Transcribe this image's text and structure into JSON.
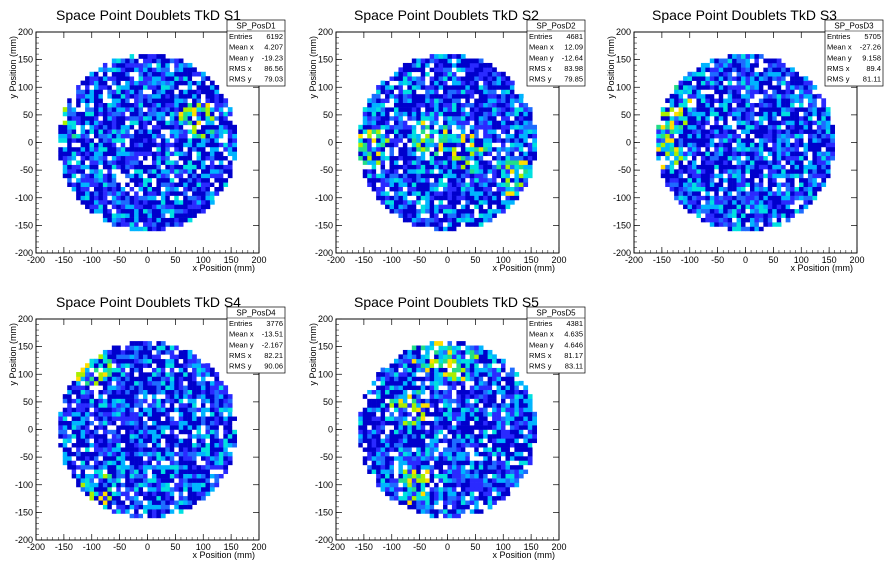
{
  "chart_data": [
    {
      "type": "heatmap",
      "title": "Space Point Doublets TkD S1",
      "xlabel": "x Position (mm)",
      "ylabel": "y Position (mm)",
      "xlim": [
        -200,
        200
      ],
      "ylim": [
        -200,
        200
      ],
      "x_ticks": [
        "-200",
        "-150",
        "-100",
        "-50",
        "0",
        "50",
        "100",
        "150",
        "200"
      ],
      "y_ticks": [
        "-200",
        "-150",
        "-100",
        "-50",
        "0",
        "50",
        "100",
        "150",
        "200"
      ],
      "data_region": "disk, radius ~160 mm centred at (0,0)",
      "hot_spots": [
        [
          90,
          40
        ],
        [
          -160,
          30
        ]
      ],
      "stats": {
        "name": "SP_PosD1",
        "rows": [
          {
            "label": "Entries",
            "value": "6192"
          },
          {
            "label": "Mean x",
            "value": "4.207"
          },
          {
            "label": "Mean y",
            "value": "-19.23"
          },
          {
            "label": "RMS x",
            "value": "86.56"
          },
          {
            "label": "RMS y",
            "value": "79.03"
          }
        ]
      }
    },
    {
      "type": "heatmap",
      "title": "Space Point Doublets TkD S2",
      "xlabel": "x Position (mm)",
      "ylabel": "y Position (mm)",
      "xlim": [
        -200,
        200
      ],
      "ylim": [
        -200,
        200
      ],
      "x_ticks": [
        "-200",
        "-150",
        "-100",
        "-50",
        "0",
        "50",
        "100",
        "150",
        "200"
      ],
      "y_ticks": [
        "-200",
        "-150",
        "-100",
        "-50",
        "0",
        "50",
        "100",
        "150",
        "200"
      ],
      "data_region": "disk, radius ~160 mm centred at (0,0)",
      "hot_spots": [
        [
          -30,
          10
        ],
        [
          40,
          -20
        ],
        [
          120,
          -60
        ],
        [
          -140,
          -10
        ]
      ],
      "stats": {
        "name": "SP_PosD2",
        "rows": [
          {
            "label": "Entries",
            "value": "4681"
          },
          {
            "label": "Mean x",
            "value": "12.09"
          },
          {
            "label": "Mean y",
            "value": "-12.64"
          },
          {
            "label": "RMS x",
            "value": "83.98"
          },
          {
            "label": "RMS y",
            "value": "79.85"
          }
        ]
      }
    },
    {
      "type": "heatmap",
      "title": "Space Point Doublets TkD S3",
      "xlabel": "x Position (mm)",
      "ylabel": "y Position (mm)",
      "xlim": [
        -200,
        200
      ],
      "ylim": [
        -200,
        200
      ],
      "x_ticks": [
        "-200",
        "-150",
        "-100",
        "-50",
        "0",
        "50",
        "100",
        "150",
        "200"
      ],
      "y_ticks": [
        "-200",
        "-150",
        "-100",
        "-50",
        "0",
        "50",
        "100",
        "150",
        "200"
      ],
      "data_region": "disk, radius ~160 mm centred at (0,0)",
      "hot_spots": [
        [
          -140,
          40
        ],
        [
          -150,
          -20
        ],
        [
          -130,
          80
        ]
      ],
      "stats": {
        "name": "SP_PosD3",
        "rows": [
          {
            "label": "Entries",
            "value": "5705"
          },
          {
            "label": "Mean x",
            "value": "-27.26"
          },
          {
            "label": "Mean y",
            "value": "9.158"
          },
          {
            "label": "RMS x",
            "value": "89.4"
          },
          {
            "label": "RMS y",
            "value": "81.11"
          }
        ]
      }
    },
    {
      "type": "heatmap",
      "title": "Space Point Doublets TkD S4",
      "xlabel": "x Position (mm)",
      "ylabel": "y Position (mm)",
      "xlim": [
        -200,
        200
      ],
      "ylim": [
        -200,
        200
      ],
      "x_ticks": [
        "-200",
        "-150",
        "-100",
        "-50",
        "0",
        "50",
        "100",
        "150",
        "200"
      ],
      "y_ticks": [
        "-200",
        "-150",
        "-100",
        "-50",
        "0",
        "50",
        "100",
        "150",
        "200"
      ],
      "data_region": "disk, radius ~160 mm centred at (0,0)",
      "hot_spots": [
        [
          -90,
          -110
        ],
        [
          -100,
          110
        ]
      ],
      "stats": {
        "name": "SP_PosD4",
        "rows": [
          {
            "label": "Entries",
            "value": "3776"
          },
          {
            "label": "Mean x",
            "value": "-13.51"
          },
          {
            "label": "Mean y",
            "value": "-2.167"
          },
          {
            "label": "RMS x",
            "value": "82.21"
          },
          {
            "label": "RMS y",
            "value": "90.06"
          }
        ]
      }
    },
    {
      "type": "heatmap",
      "title": "Space Point Doublets TkD S5",
      "xlabel": "x Position (mm)",
      "ylabel": "y Position (mm)",
      "xlim": [
        -200,
        200
      ],
      "ylim": [
        -200,
        200
      ],
      "x_ticks": [
        "-200",
        "-150",
        "-100",
        "-50",
        "0",
        "50",
        "100",
        "150",
        "200"
      ],
      "y_ticks": [
        "-200",
        "-150",
        "-100",
        "-50",
        "0",
        "50",
        "100",
        "150",
        "200"
      ],
      "data_region": "disk, radius ~160 mm centred at (0,0)",
      "hot_spots": [
        [
          -70,
          40
        ],
        [
          -60,
          -100
        ],
        [
          -30,
          140
        ],
        [
          20,
          120
        ]
      ],
      "stats": {
        "name": "SP_PosD5",
        "rows": [
          {
            "label": "Entries",
            "value": "4381"
          },
          {
            "label": "Mean x",
            "value": "4.635"
          },
          {
            "label": "Mean y",
            "value": "4.646"
          },
          {
            "label": "RMS x",
            "value": "81.17"
          },
          {
            "label": "RMS y",
            "value": "83.11"
          }
        ]
      }
    }
  ],
  "palette": [
    "#0000cc",
    "#2a2aff",
    "#1e6bff",
    "#00b4ff",
    "#00e0e0",
    "#22dd88",
    "#aaee00",
    "#ffdd00",
    "#ff8800"
  ],
  "hole_color": "#ffffff"
}
